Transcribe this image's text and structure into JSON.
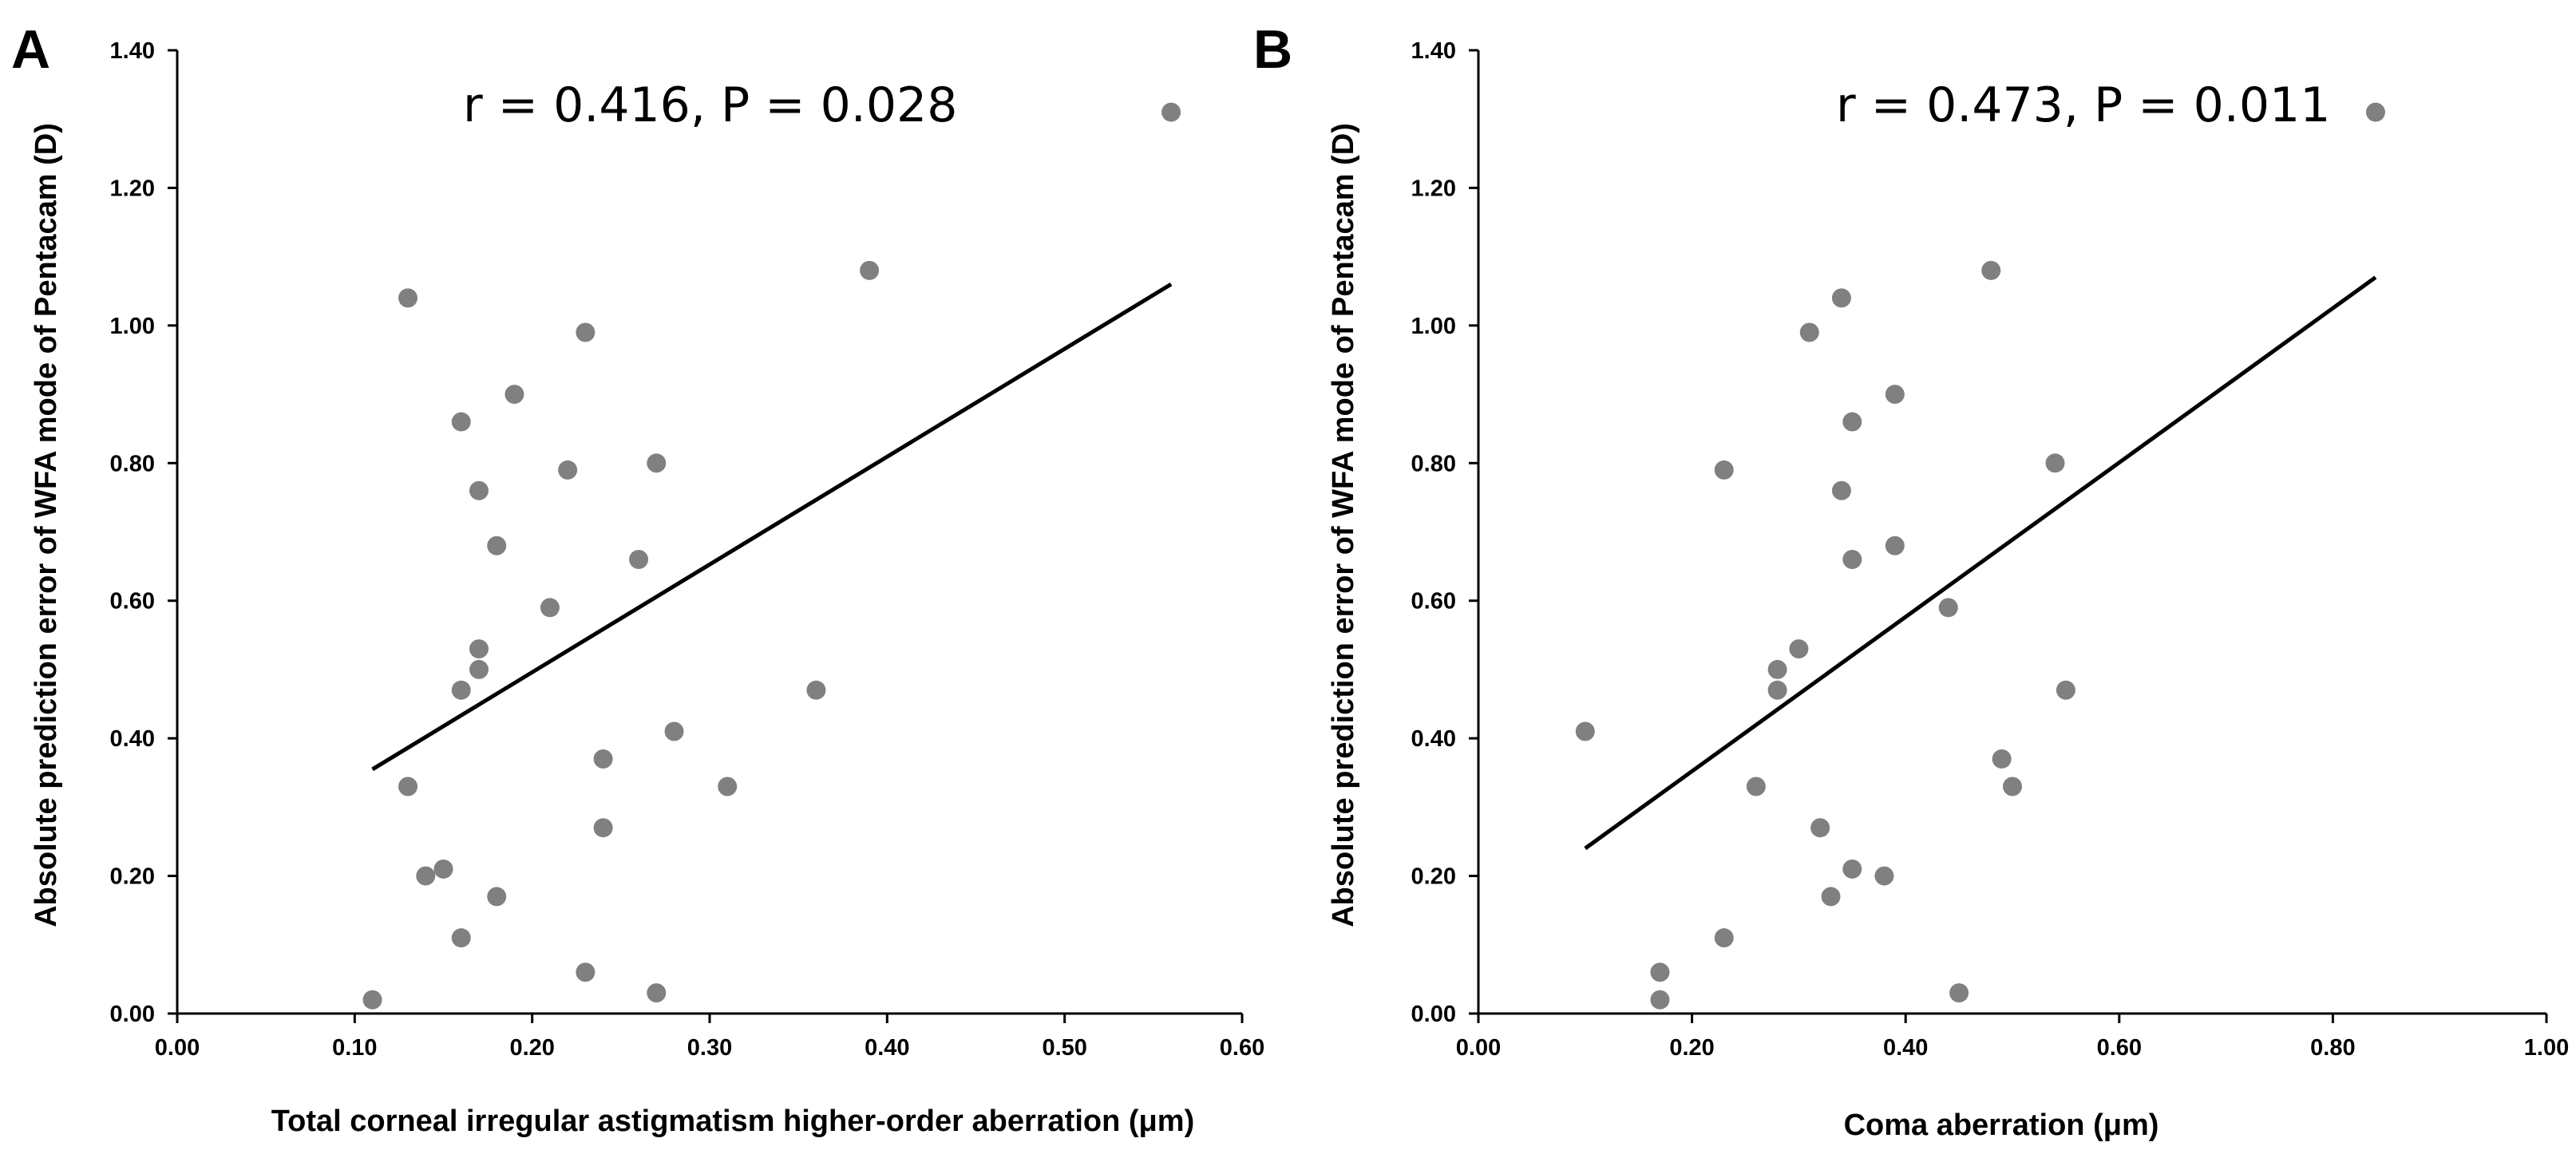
{
  "chart_data": [
    {
      "type": "scatter",
      "panel_label": "A",
      "annotation": "r = 0.416, P = 0.028",
      "xlabel": "Total corneal irregular astigmatism higher-order aberration (μm)",
      "ylabel": "Absolute prediction error of WFA mode of Pentacam (D)",
      "xlim": [
        0,
        0.6
      ],
      "ylim": [
        0,
        1.4
      ],
      "xticks": [
        "0.00",
        "0.10",
        "0.20",
        "0.30",
        "0.40",
        "0.50",
        "0.60"
      ],
      "yticks": [
        "0.00",
        "0.20",
        "0.40",
        "0.60",
        "0.80",
        "1.00",
        "1.20",
        "1.40"
      ],
      "points": [
        {
          "x": 0.11,
          "y": 0.02
        },
        {
          "x": 0.13,
          "y": 1.04
        },
        {
          "x": 0.13,
          "y": 0.33
        },
        {
          "x": 0.14,
          "y": 0.2
        },
        {
          "x": 0.15,
          "y": 0.21
        },
        {
          "x": 0.16,
          "y": 0.86
        },
        {
          "x": 0.16,
          "y": 0.47
        },
        {
          "x": 0.16,
          "y": 0.11
        },
        {
          "x": 0.17,
          "y": 0.76
        },
        {
          "x": 0.17,
          "y": 0.53
        },
        {
          "x": 0.17,
          "y": 0.5
        },
        {
          "x": 0.18,
          "y": 0.68
        },
        {
          "x": 0.18,
          "y": 0.17
        },
        {
          "x": 0.19,
          "y": 0.9
        },
        {
          "x": 0.21,
          "y": 0.59
        },
        {
          "x": 0.22,
          "y": 0.79
        },
        {
          "x": 0.23,
          "y": 0.99
        },
        {
          "x": 0.23,
          "y": 0.06
        },
        {
          "x": 0.24,
          "y": 0.37
        },
        {
          "x": 0.24,
          "y": 0.27
        },
        {
          "x": 0.26,
          "y": 0.66
        },
        {
          "x": 0.27,
          "y": 0.8
        },
        {
          "x": 0.27,
          "y": 0.03
        },
        {
          "x": 0.28,
          "y": 0.41
        },
        {
          "x": 0.31,
          "y": 0.33
        },
        {
          "x": 0.36,
          "y": 0.47
        },
        {
          "x": 0.39,
          "y": 1.08
        },
        {
          "x": 0.56,
          "y": 1.31
        }
      ],
      "trendline": [
        {
          "x": 0.11,
          "y": 0.355
        },
        {
          "x": 0.56,
          "y": 1.06
        }
      ]
    },
    {
      "type": "scatter",
      "panel_label": "B",
      "annotation": "r = 0.473, P = 0.011",
      "xlabel": "Coma aberration (μm)",
      "ylabel": "Absolute prediction error of WFA mode of Pentacam (D)",
      "xlim": [
        0,
        1.0
      ],
      "ylim": [
        0,
        1.4
      ],
      "xticks": [
        "0.00",
        "0.20",
        "0.40",
        "0.60",
        "0.80",
        "1.00"
      ],
      "yticks": [
        "0.00",
        "0.20",
        "0.40",
        "0.60",
        "0.80",
        "1.00",
        "1.20",
        "1.40"
      ],
      "points": [
        {
          "x": 0.1,
          "y": 0.41
        },
        {
          "x": 0.17,
          "y": 0.06
        },
        {
          "x": 0.17,
          "y": 0.02
        },
        {
          "x": 0.23,
          "y": 0.79
        },
        {
          "x": 0.23,
          "y": 0.11
        },
        {
          "x": 0.26,
          "y": 0.33
        },
        {
          "x": 0.28,
          "y": 0.5
        },
        {
          "x": 0.28,
          "y": 0.47
        },
        {
          "x": 0.3,
          "y": 0.53
        },
        {
          "x": 0.31,
          "y": 0.99
        },
        {
          "x": 0.32,
          "y": 0.27
        },
        {
          "x": 0.33,
          "y": 0.17
        },
        {
          "x": 0.34,
          "y": 1.04
        },
        {
          "x": 0.34,
          "y": 0.76
        },
        {
          "x": 0.35,
          "y": 0.86
        },
        {
          "x": 0.35,
          "y": 0.66
        },
        {
          "x": 0.35,
          "y": 0.21
        },
        {
          "x": 0.38,
          "y": 0.2
        },
        {
          "x": 0.39,
          "y": 0.9
        },
        {
          "x": 0.39,
          "y": 0.68
        },
        {
          "x": 0.44,
          "y": 0.59
        },
        {
          "x": 0.45,
          "y": 0.03
        },
        {
          "x": 0.48,
          "y": 1.08
        },
        {
          "x": 0.49,
          "y": 0.37
        },
        {
          "x": 0.5,
          "y": 0.33
        },
        {
          "x": 0.54,
          "y": 0.8
        },
        {
          "x": 0.55,
          "y": 0.47
        },
        {
          "x": 0.84,
          "y": 1.31
        }
      ],
      "trendline": [
        {
          "x": 0.1,
          "y": 0.24
        },
        {
          "x": 0.84,
          "y": 1.07
        }
      ]
    }
  ],
  "colors": {
    "point": "#808080",
    "line": "#000000",
    "axis": "#000000"
  }
}
